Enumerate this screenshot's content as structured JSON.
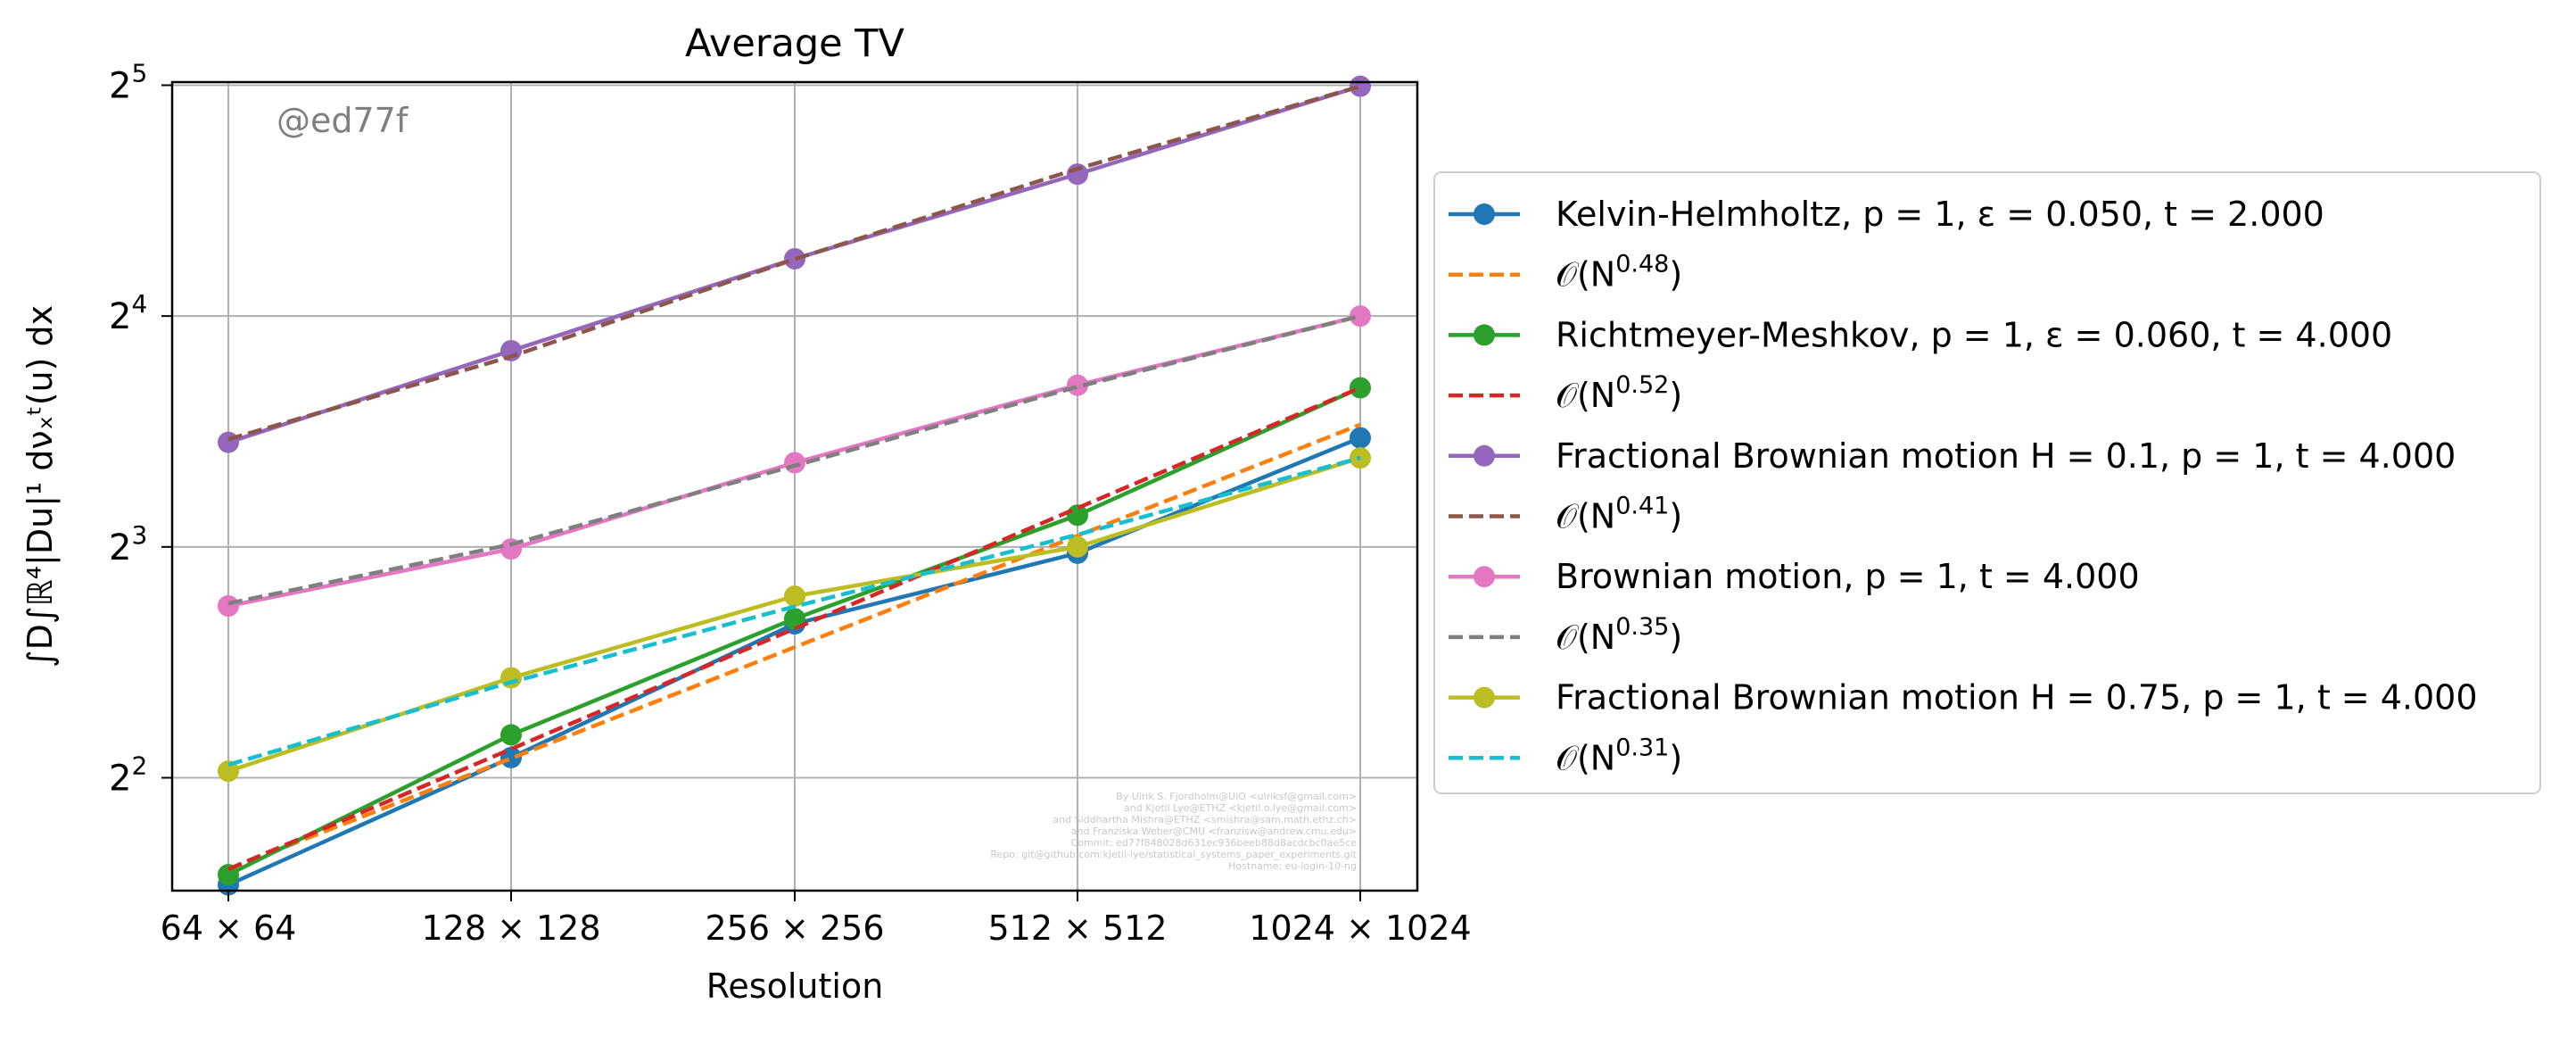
{
  "chart_data": {
    "type": "line",
    "title": "Average TV",
    "xlabel": "Resolution",
    "ylabel": "∫D∫ℝ⁴|Du|¹ dνₓᵗ(u) dx",
    "categories": [
      "64 × 64",
      "128 × 128",
      "256 × 256",
      "512 × 512",
      "1024 × 1024"
    ],
    "x": [
      64,
      128,
      256,
      512,
      1024
    ],
    "x_scale": "log2",
    "y_scale": "log2",
    "ylim": [
      2.85,
      32.3
    ],
    "yticks": [
      {
        "value": 4,
        "base": "2",
        "exp": "2"
      },
      {
        "value": 8,
        "base": "2",
        "exp": "3"
      },
      {
        "value": 16,
        "base": "2",
        "exp": "4"
      },
      {
        "value": 32,
        "base": "2",
        "exp": "5"
      }
    ],
    "grid": true,
    "legend_position": "outside right",
    "series": [
      {
        "legend_text": "Kelvin-Helmholtz, p = 1, ε = 0.050, t = 2.000",
        "color": "#1f77b4",
        "style": "solid",
        "marker": "circle",
        "values": [
          2.9,
          4.25,
          6.35,
          7.85,
          11.1
        ]
      },
      {
        "legend_text": "𝒪(N^0.48)",
        "color": "#ff7f0e",
        "style": "dashed",
        "marker": "none",
        "values": [
          3.04,
          4.24,
          5.92,
          8.27,
          11.55
        ]
      },
      {
        "legend_text": "Richtmeyer-Meshkov, p = 1, ε = 0.060, t = 4.000",
        "color": "#2ca02c",
        "style": "solid",
        "marker": "circle",
        "values": [
          2.99,
          4.55,
          6.45,
          8.8,
          12.9
        ]
      },
      {
        "legend_text": "𝒪(N^0.52)",
        "color": "#d62728",
        "style": "dashed",
        "marker": "circle-none",
        "values": [
          3.04,
          4.36,
          6.26,
          8.99,
          12.9
        ]
      },
      {
        "legend_text": "Fractional Brownian motion H = 0.1, p = 1, t = 4.000",
        "color": "#9467bd",
        "style": "solid",
        "marker": "circle",
        "values": [
          10.95,
          14.42,
          19.0,
          24.5,
          31.9
        ]
      },
      {
        "legend_text": "𝒪(N^0.41)",
        "color": "#8c564b",
        "style": "dashed",
        "marker": "none",
        "values": [
          11.05,
          14.17,
          18.98,
          24.9,
          31.9
        ]
      },
      {
        "legend_text": "Brownian motion, p = 1, t = 4.000",
        "color": "#e377c2",
        "style": "solid",
        "marker": "circle",
        "values": [
          6.7,
          7.95,
          10.3,
          13.0,
          16.0
        ]
      },
      {
        "legend_text": "𝒪(N^0.35)",
        "color": "#7f7f7f",
        "style": "dashed",
        "marker": "none",
        "values": [
          6.75,
          8.06,
          10.21,
          12.94,
          16.0
        ]
      },
      {
        "legend_text": "Fractional Brownian motion H = 0.75, p = 1, t = 4.000",
        "color": "#bcbd22",
        "style": "solid",
        "marker": "circle",
        "values": [
          4.08,
          5.4,
          6.9,
          8.0,
          10.45
        ]
      },
      {
        "legend_text": "𝒪(N^0.31)",
        "color": "#17becf",
        "style": "dashed",
        "marker": "none",
        "values": [
          4.16,
          5.33,
          6.69,
          8.3,
          10.45
        ]
      }
    ],
    "annotation": "@ed77f",
    "watermark_lines": [
      "By Ulrik S. Fjordholm@UiO <ulriksf@gmail.com>",
      "and Kjetil Lye@ETHZ <kjetil.o.lye@gmail.com>",
      "and Siddhartha Mishra@ETHZ <smishra@sam.math.ethz.ch>",
      "and Franziska Weber@CMU <franzisw@andrew.cmu.edu>",
      "Commit: ed77f848028d631ec936beeb88d8acdcbc0ae5ce",
      "Repo: git@github.com:kjetil-lye/statistical_systems_paper_experiments.git",
      "Hostname: eu-login-10-ng"
    ]
  }
}
